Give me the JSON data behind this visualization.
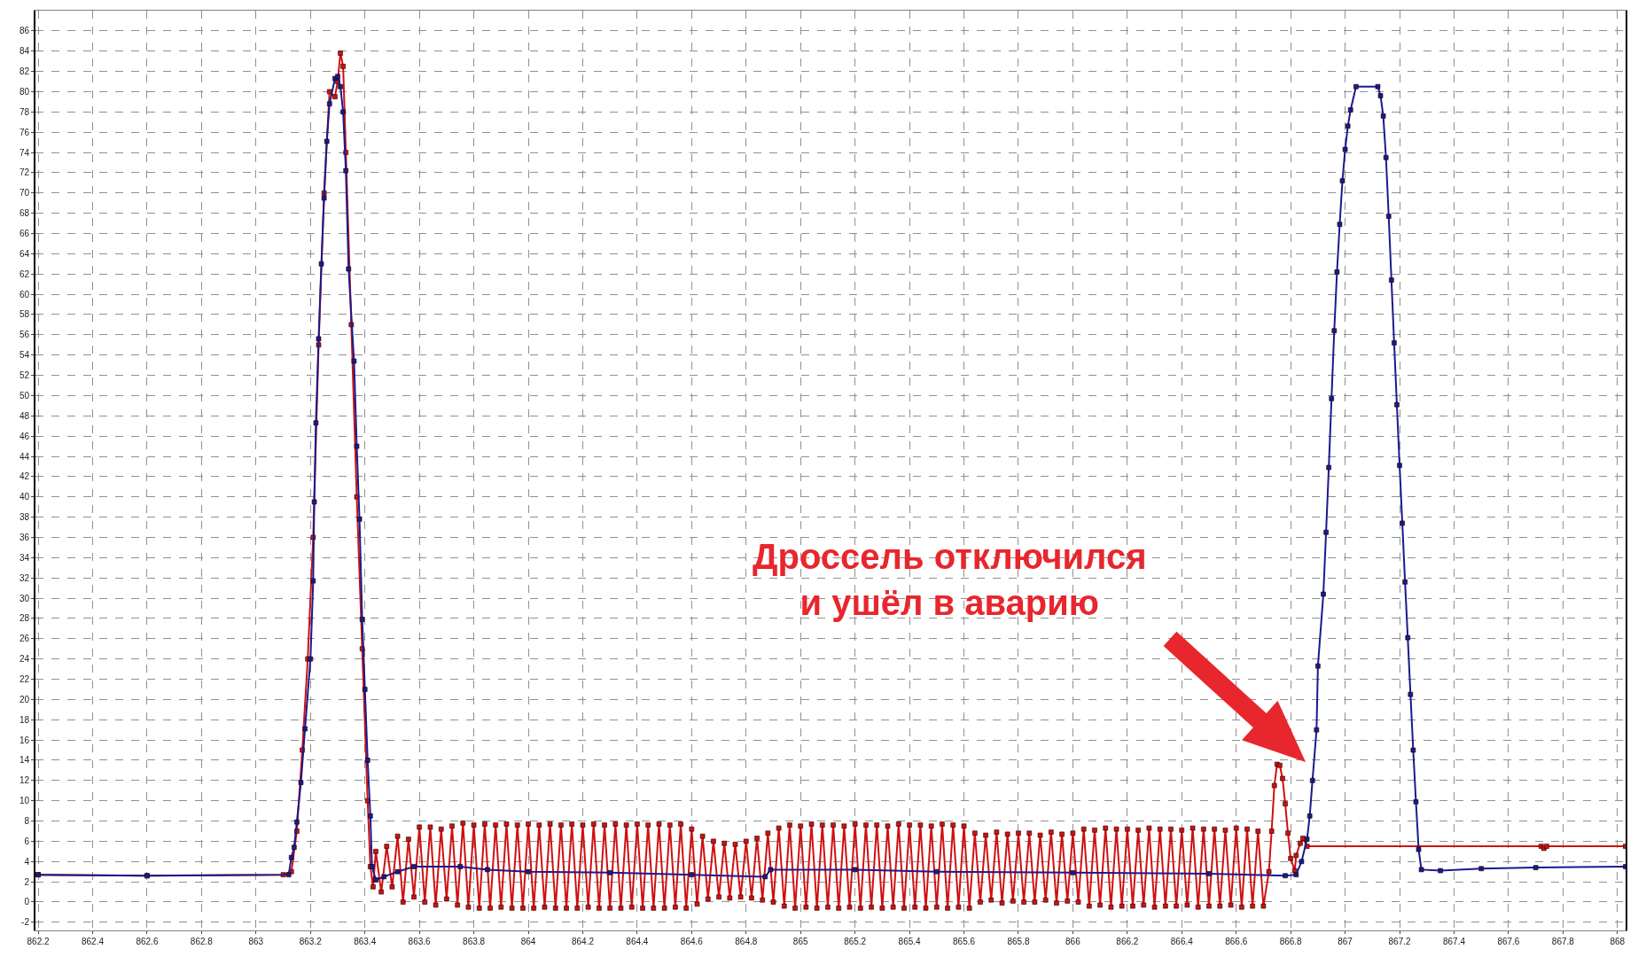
{
  "chart_data": {
    "type": "line",
    "series": [
      {
        "color": "#d01010",
        "x": [
          862.2,
          862.6,
          863.1,
          863.13,
          863.15,
          863.17,
          863.19,
          863.21,
          863.23,
          863.25,
          863.27,
          863.29,
          863.3,
          863.31,
          863.32,
          863.33,
          863.35,
          863.37,
          863.39,
          863.41,
          863.42,
          863.43,
          863.44,
          863.46,
          863.48,
          863.5,
          863.52,
          863.54,
          863.56,
          863.58,
          863.6,
          863.62,
          863.64,
          863.66,
          863.68,
          863.7,
          863.72,
          863.74,
          863.76,
          863.78,
          863.8,
          863.82,
          863.84,
          863.86,
          863.88,
          863.9,
          863.92,
          863.94,
          863.96,
          863.98,
          864,
          864.02,
          864.04,
          864.06,
          864.08,
          864.1,
          864.12,
          864.14,
          864.16,
          864.18,
          864.2,
          864.22,
          864.24,
          864.26,
          864.28,
          864.3,
          864.32,
          864.34,
          864.36,
          864.38,
          864.4,
          864.42,
          864.44,
          864.46,
          864.48,
          864.5,
          864.52,
          864.54,
          864.56,
          864.58,
          864.6,
          864.62,
          864.64,
          864.66,
          864.68,
          864.7,
          864.72,
          864.74,
          864.76,
          864.78,
          864.8,
          864.82,
          864.84,
          864.86,
          864.88,
          864.9,
          864.92,
          864.94,
          864.96,
          864.98,
          865,
          865.02,
          865.04,
          865.06,
          865.08,
          865.1,
          865.12,
          865.14,
          865.16,
          865.18,
          865.2,
          865.22,
          865.24,
          865.26,
          865.28,
          865.3,
          865.32,
          865.34,
          865.36,
          865.38,
          865.4,
          865.42,
          865.44,
          865.46,
          865.48,
          865.5,
          865.52,
          865.54,
          865.56,
          865.58,
          865.6,
          865.62,
          865.64,
          865.66,
          865.68,
          865.7,
          865.72,
          865.74,
          865.76,
          865.78,
          865.8,
          865.82,
          865.84,
          865.86,
          865.88,
          865.9,
          865.92,
          865.94,
          865.96,
          865.98,
          866,
          866.02,
          866.04,
          866.06,
          866.08,
          866.1,
          866.12,
          866.14,
          866.16,
          866.18,
          866.2,
          866.22,
          866.24,
          866.26,
          866.28,
          866.3,
          866.32,
          866.34,
          866.36,
          866.38,
          866.4,
          866.42,
          866.44,
          866.46,
          866.48,
          866.5,
          866.52,
          866.54,
          866.56,
          866.58,
          866.6,
          866.62,
          866.64,
          866.66,
          866.68,
          866.7,
          866.72,
          866.73,
          866.74,
          866.75,
          866.76,
          866.77,
          866.78,
          866.79,
          866.8,
          866.815,
          866.82,
          866.835,
          866.845,
          866.86,
          867.72,
          867.73,
          867.74,
          868.03
        ],
        "values": [
          2.7,
          2.6,
          2.7,
          3.0,
          7.0,
          15,
          24,
          36,
          55,
          70,
          80,
          79.5,
          81,
          83.8,
          82.5,
          74,
          57,
          40,
          25,
          10,
          3.5,
          1.5,
          5.0,
          1.0,
          5.5,
          1.5,
          6.5,
          0.0,
          6.2,
          0.5,
          7.4,
          0.0,
          7.4,
          -0.3,
          7.2,
          0.3,
          7.5,
          -0.3,
          7.8,
          -0.5,
          7.6,
          -0.6,
          7.7,
          -0.6,
          7.6,
          -0.5,
          7.7,
          -0.6,
          7.6,
          -0.6,
          7.7,
          -0.6,
          7.6,
          -0.5,
          7.7,
          -0.6,
          7.6,
          -0.6,
          7.7,
          -0.6,
          7.6,
          -0.5,
          7.7,
          -0.6,
          7.6,
          -0.6,
          7.7,
          -0.6,
          7.6,
          -0.5,
          7.7,
          -0.6,
          7.6,
          -0.6,
          7.7,
          -0.6,
          7.6,
          -0.5,
          7.7,
          -0.6,
          7.2,
          -0.2,
          6.5,
          0.3,
          6.0,
          0.5,
          5.8,
          0.4,
          5.7,
          0.5,
          6.0,
          0.4,
          6.3,
          0.2,
          6.8,
          0.0,
          7.3,
          -0.4,
          7.6,
          -0.6,
          7.5,
          -0.5,
          7.7,
          -0.6,
          7.6,
          -0.5,
          7.6,
          -0.6,
          7.5,
          -0.5,
          7.7,
          -0.6,
          7.6,
          -0.5,
          7.6,
          -0.6,
          7.5,
          -0.5,
          7.7,
          -0.6,
          7.6,
          -0.5,
          7.6,
          -0.6,
          7.5,
          -0.5,
          7.7,
          -0.6,
          7.6,
          -0.5,
          7.5,
          -0.6,
          6.8,
          0.0,
          6.6,
          0.2,
          6.9,
          -0.1,
          6.7,
          0.1,
          6.8,
          0.0,
          6.8,
          0.0,
          6.6,
          0.2,
          6.9,
          -0.1,
          6.7,
          0.1,
          6.8,
          0.0,
          7.2,
          -0.4,
          7.1,
          -0.3,
          7.3,
          -0.5,
          7.2,
          -0.4,
          7.2,
          -0.4,
          7.1,
          -0.3,
          7.3,
          -0.5,
          7.2,
          -0.4,
          7.2,
          -0.4,
          7.1,
          -0.3,
          7.3,
          -0.5,
          7.2,
          -0.4,
          7.2,
          -0.4,
          7.1,
          -0.3,
          7.3,
          -0.5,
          7.2,
          -0.4,
          7.0,
          -0.4,
          3.0,
          7.0,
          11.5,
          13.6,
          13.5,
          12.2,
          9.7,
          6.8,
          4.3,
          3.1,
          4.6,
          5.8,
          6.3,
          5.5,
          5.5,
          5.3,
          5.5,
          5.5
        ]
      },
      {
        "color": "#1a1a8c",
        "x": [
          862.2,
          862.6,
          863.12,
          863.13,
          863.14,
          863.15,
          863.165,
          863.18,
          863.2,
          863.21,
          863.214,
          863.22,
          863.23,
          863.24,
          863.25,
          863.26,
          863.27,
          863.29,
          863.3,
          863.31,
          863.32,
          863.33,
          863.34,
          863.36,
          863.37,
          863.38,
          863.39,
          863.4,
          863.41,
          863.42,
          863.426,
          863.44,
          863.47,
          863.52,
          863.58,
          863.75,
          863.85,
          864,
          864.3,
          864.6,
          864.87,
          864.89,
          865.2,
          865.5,
          866,
          866.5,
          866.78,
          866.82,
          866.84,
          866.86,
          866.87,
          866.88,
          866.895,
          866.9,
          866.92,
          866.93,
          866.94,
          866.95,
          866.96,
          866.97,
          866.98,
          866.99,
          867,
          867.01,
          867.02,
          867.04,
          867.12,
          867.13,
          867.14,
          867.15,
          867.16,
          867.17,
          867.18,
          867.19,
          867.2,
          867.21,
          867.22,
          867.23,
          867.24,
          867.25,
          867.26,
          867.27,
          867.28,
          867.35,
          867.5,
          867.7,
          868.03
        ],
        "values": [
          2.7,
          2.6,
          2.7,
          4.4,
          5.4,
          7.9,
          11.8,
          17.1,
          24.0,
          31.7,
          39.5,
          47.3,
          55.6,
          63.0,
          69.5,
          75.1,
          78.8,
          81.3,
          81.5,
          80.5,
          78,
          72.2,
          62.5,
          53.4,
          45.0,
          37.8,
          27.9,
          21.0,
          14.0,
          8.5,
          3.5,
          2.2,
          2.5,
          3.0,
          3.5,
          3.5,
          3.2,
          3.0,
          2.9,
          2.7,
          2.5,
          3.2,
          3.2,
          3.0,
          2.9,
          2.8,
          2.6,
          2.7,
          4.0,
          6.2,
          8.5,
          12.0,
          17.0,
          23.3,
          30.4,
          36.5,
          42.9,
          49.7,
          56.4,
          62.2,
          66.9,
          71.2,
          74.3,
          76.6,
          78.2,
          80.5,
          80.5,
          79.6,
          77.6,
          73.5,
          67.7,
          61.4,
          55.2,
          49.1,
          43.1,
          37.4,
          31.6,
          26.1,
          20.5,
          15.0,
          9.9,
          5.2,
          3.2,
          3.1,
          3.3,
          3.4,
          3.5
        ]
      }
    ],
    "xlim": [
      862.19,
      868.03
    ],
    "ylim": [
      -2.8,
      88
    ],
    "xticks": [
      862.2,
      862.4,
      862.6,
      862.8,
      863,
      863.2,
      863.4,
      863.6,
      863.8,
      864,
      864.2,
      864.4,
      864.6,
      864.8,
      865,
      865.2,
      865.4,
      865.6,
      865.8,
      866,
      866.2,
      866.4,
      866.6,
      866.8,
      867,
      867.2,
      867.4,
      867.6,
      867.8,
      868
    ],
    "yticks": [
      -2,
      0,
      2,
      4,
      6,
      8,
      10,
      12,
      14,
      16,
      18,
      20,
      22,
      24,
      26,
      28,
      30,
      32,
      34,
      36,
      38,
      40,
      42,
      44,
      46,
      48,
      50,
      52,
      54,
      56,
      58,
      60,
      62,
      64,
      66,
      68,
      70,
      72,
      74,
      76,
      78,
      80,
      82,
      84,
      86
    ],
    "grid": true,
    "marker": "square",
    "line_style": "solid",
    "annotations": [
      "Дроссель отключился\nи ушёл в аварию"
    ]
  }
}
